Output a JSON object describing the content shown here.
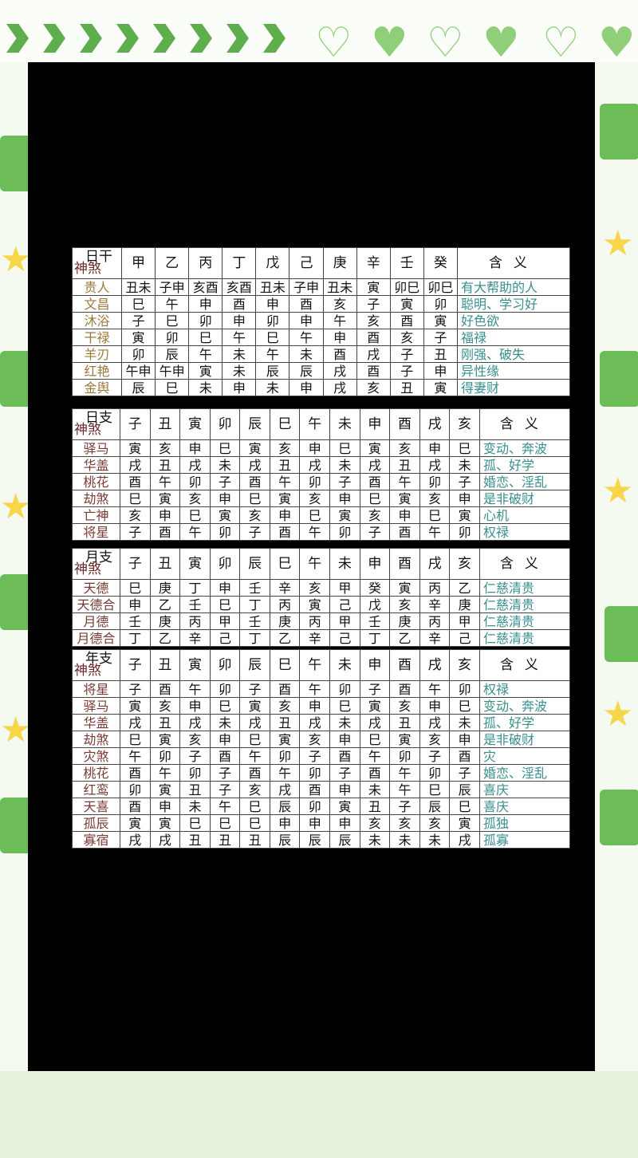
{
  "tables": [
    {
      "corner_top": "日干",
      "corner_bottom": "神煞",
      "meaning_header": "含义",
      "columns": [
        "甲",
        "乙",
        "丙",
        "丁",
        "戊",
        "己",
        "庚",
        "辛",
        "壬",
        "癸"
      ],
      "rows": [
        {
          "label": "贵人",
          "cells": [
            "丑未",
            "子申",
            "亥酉",
            "亥酉",
            "丑未",
            "子申",
            "丑未",
            "寅",
            "卯巳",
            "卯巳"
          ],
          "meaning": "有大帮助的人"
        },
        {
          "label": "文昌",
          "cells": [
            "巳",
            "午",
            "申",
            "酉",
            "申",
            "酉",
            "亥",
            "子",
            "寅",
            "卯"
          ],
          "meaning": "聪明、学习好"
        },
        {
          "label": "沐浴",
          "cells": [
            "子",
            "巳",
            "卯",
            "申",
            "卯",
            "申",
            "午",
            "亥",
            "酉",
            "寅"
          ],
          "meaning": "好色欲"
        },
        {
          "label": "干禄",
          "cells": [
            "寅",
            "卯",
            "巳",
            "午",
            "巳",
            "午",
            "申",
            "酉",
            "亥",
            "子"
          ],
          "meaning": "福禄"
        },
        {
          "label": "羊刃",
          "cells": [
            "卯",
            "辰",
            "午",
            "未",
            "午",
            "未",
            "酉",
            "戌",
            "子",
            "丑"
          ],
          "meaning": "刚强、破失"
        },
        {
          "label": "红艳",
          "cells": [
            "午申",
            "午申",
            "寅",
            "未",
            "辰",
            "辰",
            "戌",
            "酉",
            "子",
            "申"
          ],
          "meaning": "异性缘"
        },
        {
          "label": "金舆",
          "cells": [
            "辰",
            "巳",
            "未",
            "申",
            "未",
            "申",
            "戌",
            "亥",
            "丑",
            "寅"
          ],
          "meaning": "得妻财"
        }
      ]
    },
    {
      "corner_top": "日支",
      "corner_bottom": "神煞",
      "meaning_header": "含义",
      "columns": [
        "子",
        "丑",
        "寅",
        "卯",
        "辰",
        "巳",
        "午",
        "未",
        "申",
        "酉",
        "戌",
        "亥"
      ],
      "rows": [
        {
          "label": "驿马",
          "cells": [
            "寅",
            "亥",
            "申",
            "巳",
            "寅",
            "亥",
            "申",
            "巳",
            "寅",
            "亥",
            "申",
            "巳"
          ],
          "meaning": "变动、奔波"
        },
        {
          "label": "华盖",
          "cells": [
            "戌",
            "丑",
            "戌",
            "未",
            "戌",
            "丑",
            "戌",
            "未",
            "戌",
            "丑",
            "戌",
            "未"
          ],
          "meaning": "孤、好学"
        },
        {
          "label": "桃花",
          "cells": [
            "酉",
            "午",
            "卯",
            "子",
            "酉",
            "午",
            "卯",
            "子",
            "酉",
            "午",
            "卯",
            "子"
          ],
          "meaning": "婚恋、淫乱"
        },
        {
          "label": "劫煞",
          "cells": [
            "巳",
            "寅",
            "亥",
            "申",
            "巳",
            "寅",
            "亥",
            "申",
            "巳",
            "寅",
            "亥",
            "申"
          ],
          "meaning": "是非破财"
        },
        {
          "label": "亡神",
          "cells": [
            "亥",
            "申",
            "巳",
            "寅",
            "亥",
            "申",
            "巳",
            "寅",
            "亥",
            "申",
            "巳",
            "寅"
          ],
          "meaning": "心机"
        },
        {
          "label": "将星",
          "cells": [
            "子",
            "酉",
            "午",
            "卯",
            "子",
            "酉",
            "午",
            "卯",
            "子",
            "酉",
            "午",
            "卯"
          ],
          "meaning": "权禄"
        }
      ]
    },
    {
      "corner_top": "月支",
      "corner_bottom": "神煞",
      "meaning_header": "含义",
      "columns": [
        "子",
        "丑",
        "寅",
        "卯",
        "辰",
        "巳",
        "午",
        "未",
        "申",
        "酉",
        "戌",
        "亥"
      ],
      "rows": [
        {
          "label": "天德",
          "cells": [
            "巳",
            "庚",
            "丁",
            "申",
            "壬",
            "辛",
            "亥",
            "甲",
            "癸",
            "寅",
            "丙",
            "乙"
          ],
          "meaning": "仁慈清贵"
        },
        {
          "label": "天德合",
          "cells": [
            "申",
            "乙",
            "壬",
            "巳",
            "丁",
            "丙",
            "寅",
            "己",
            "戊",
            "亥",
            "辛",
            "庚"
          ],
          "meaning": "仁慈清贵"
        },
        {
          "label": "月德",
          "cells": [
            "壬",
            "庚",
            "丙",
            "甲",
            "壬",
            "庚",
            "丙",
            "甲",
            "壬",
            "庚",
            "丙",
            "甲"
          ],
          "meaning": "仁慈清贵"
        },
        {
          "label": "月德合",
          "cells": [
            "丁",
            "乙",
            "辛",
            "己",
            "丁",
            "乙",
            "辛",
            "己",
            "丁",
            "乙",
            "辛",
            "己"
          ],
          "meaning": "仁慈清贵"
        }
      ]
    },
    {
      "corner_top": "年支",
      "corner_bottom": "神煞",
      "meaning_header": "含义",
      "columns": [
        "子",
        "丑",
        "寅",
        "卯",
        "辰",
        "巳",
        "午",
        "未",
        "申",
        "酉",
        "戌",
        "亥"
      ],
      "rows": [
        {
          "label": "将星",
          "cells": [
            "子",
            "酉",
            "午",
            "卯",
            "子",
            "酉",
            "午",
            "卯",
            "子",
            "酉",
            "午",
            "卯"
          ],
          "meaning": "权禄"
        },
        {
          "label": "驿马",
          "cells": [
            "寅",
            "亥",
            "申",
            "巳",
            "寅",
            "亥",
            "申",
            "巳",
            "寅",
            "亥",
            "申",
            "巳"
          ],
          "meaning": "变动、奔波"
        },
        {
          "label": "华盖",
          "cells": [
            "戌",
            "丑",
            "戌",
            "未",
            "戌",
            "丑",
            "戌",
            "未",
            "戌",
            "丑",
            "戌",
            "未"
          ],
          "meaning": "孤、好学"
        },
        {
          "label": "劫煞",
          "cells": [
            "巳",
            "寅",
            "亥",
            "申",
            "巳",
            "寅",
            "亥",
            "申",
            "巳",
            "寅",
            "亥",
            "申"
          ],
          "meaning": "是非破财"
        },
        {
          "label": "灾煞",
          "cells": [
            "午",
            "卯",
            "子",
            "酉",
            "午",
            "卯",
            "子",
            "酉",
            "午",
            "卯",
            "子",
            "酉"
          ],
          "meaning": "灾"
        },
        {
          "label": "桃花",
          "cells": [
            "酉",
            "午",
            "卯",
            "子",
            "酉",
            "午",
            "卯",
            "子",
            "酉",
            "午",
            "卯",
            "子"
          ],
          "meaning": "婚恋、淫乱"
        },
        {
          "label": "红鸾",
          "cells": [
            "卯",
            "寅",
            "丑",
            "子",
            "亥",
            "戌",
            "酉",
            "申",
            "未",
            "午",
            "巳",
            "辰"
          ],
          "meaning": "喜庆"
        },
        {
          "label": "天喜",
          "cells": [
            "酉",
            "申",
            "未",
            "午",
            "巳",
            "辰",
            "卯",
            "寅",
            "丑",
            "子",
            "辰",
            "巳"
          ],
          "meaning": "喜庆"
        },
        {
          "label": "孤辰",
          "cells": [
            "寅",
            "寅",
            "巳",
            "巳",
            "巳",
            "申",
            "申",
            "申",
            "亥",
            "亥",
            "亥",
            "寅"
          ],
          "meaning": "孤独"
        },
        {
          "label": "寡宿",
          "cells": [
            "戌",
            "戌",
            "丑",
            "丑",
            "丑",
            "辰",
            "辰",
            "辰",
            "未",
            "未",
            "未",
            "戌"
          ],
          "meaning": "孤寡"
        }
      ]
    }
  ],
  "colors": {
    "panel": "#000000",
    "label": "#7a3a34",
    "meaning": "#3a8e8e",
    "accent_green": "#5fae4e"
  }
}
